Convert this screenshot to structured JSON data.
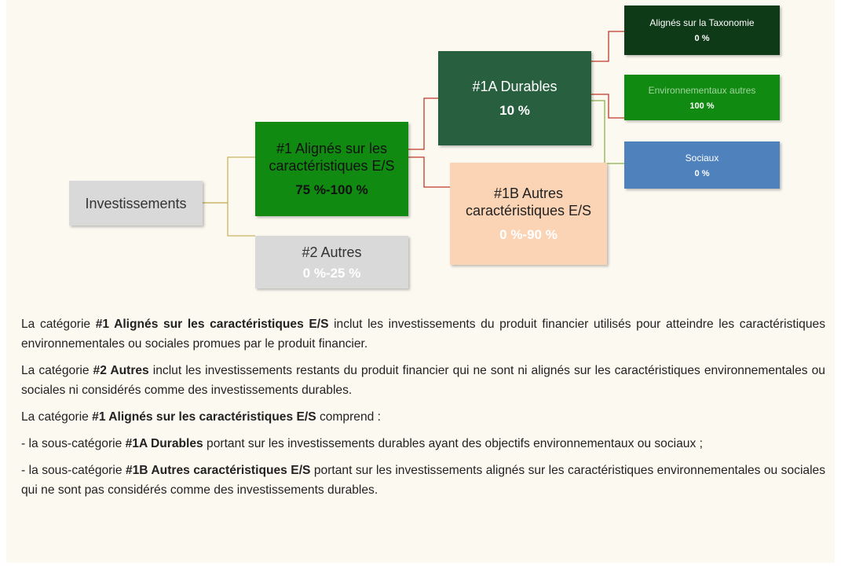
{
  "nodes": [
    {
      "label": "Investissements"
    },
    {
      "label": "#1 Alignés sur les caractéristiques E/S",
      "value": "75 %-100 %"
    },
    {
      "label": "#2 Autres",
      "value": "0 %-25 %"
    },
    {
      "label": "#1A Durables",
      "value": "10 %"
    },
    {
      "label": "#1B Autres caractéristiques E/S",
      "value": "0 %-90 %"
    },
    {
      "label": "Alignés sur la Taxonomie",
      "value": "0 %"
    },
    {
      "label": "Environnementaux autres",
      "value": "100 %"
    },
    {
      "label": "Sociaux",
      "value": "0 %"
    }
  ],
  "paragraphs": [
    [
      {
        "text": "La catégorie "
      },
      {
        "text": "#1 Alignés sur les caractéristiques E/S",
        "bold": true
      },
      {
        "text": " inclut les investissements du produit financier utilisés pour atteindre les caractéristiques environnementales ou sociales promues par le produit financier."
      }
    ],
    [
      {
        "text": "La catégorie "
      },
      {
        "text": "#2 Autres",
        "bold": true
      },
      {
        "text": " inclut les investissements restants du produit financier qui ne sont ni alignés sur les caractéristiques environnementales ou sociales ni considérés comme des investissements durables."
      }
    ],
    [
      {
        "text": "La catégorie "
      },
      {
        "text": "#1 Alignés sur les caractéristiques E/S",
        "bold": true
      },
      {
        "text": " comprend :"
      }
    ],
    [
      {
        "text": "- la sous-catégorie "
      },
      {
        "text": "#1A Durables",
        "bold": true
      },
      {
        "text": " portant sur les investissements durables ayant des objectifs environnementaux ou sociaux ;"
      }
    ],
    [
      {
        "text": "- la sous-catégorie "
      },
      {
        "text": "#1B Autres caractéristiques E/S",
        "bold": true
      },
      {
        "text": " portant sur les investissements alignés sur les caractéristiques environnementales ou sociales qui ne sont pas considérés comme des investissements durables."
      }
    ]
  ]
}
